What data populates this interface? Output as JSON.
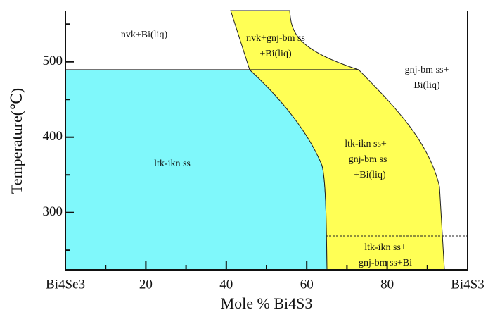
{
  "chart_data": {
    "type": "phase-diagram",
    "xlabel": "Mole % Bi4S3",
    "ylabel": "Temperature(℃)",
    "xlim": [
      0,
      100
    ],
    "ylim": [
      224,
      568
    ],
    "xticks": [
      {
        "value": 0,
        "label": "Bi4Se3"
      },
      20,
      40,
      60,
      80,
      {
        "value": 100,
        "label": "Bi4S3"
      }
    ],
    "xminor": [
      10,
      30,
      50,
      70,
      90
    ],
    "yticks": [
      300,
      400,
      500
    ],
    "yminor": [
      250,
      350,
      450,
      550
    ],
    "regions": [
      {
        "lines": [
          "nvk+Bi(liq)"
        ]
      },
      {
        "lines": [
          "nvk+gnj-bm ss",
          "+Bi(liq)"
        ]
      },
      {
        "lines": [
          "gnj-bm ss+",
          "Bi(liq)"
        ]
      },
      {
        "lines": [
          "ltk-ikn ss"
        ]
      },
      {
        "lines": [
          "ltk-ikn ss+",
          "gnj-bm ss",
          "+Bi(liq)"
        ]
      },
      {
        "lines": [
          "ltk-ikn ss+",
          "gnj-bm ss+Bi"
        ]
      }
    ]
  }
}
